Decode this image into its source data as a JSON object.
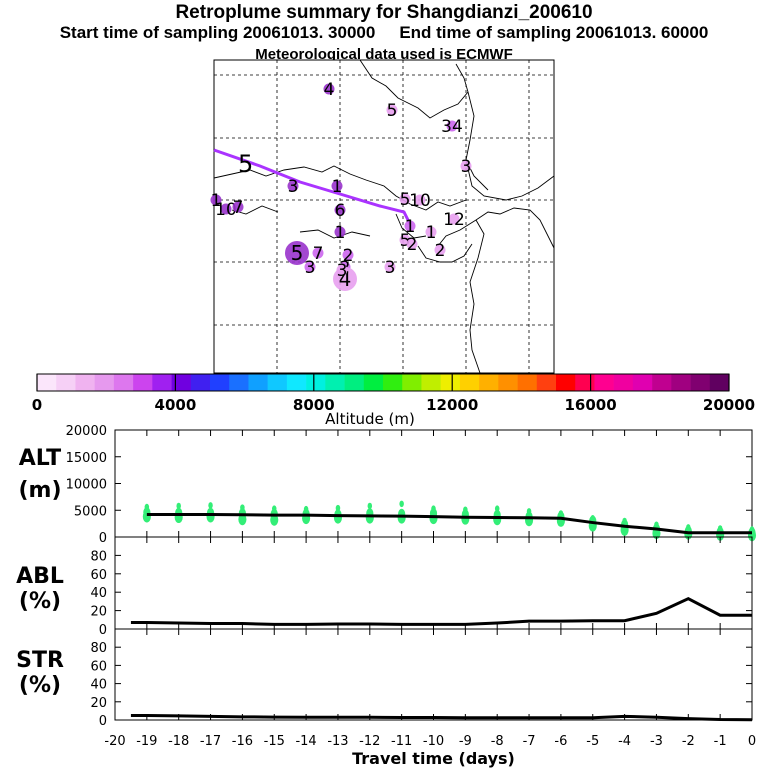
{
  "header": {
    "title": "Retroplume summary for Shangdianzi_200610",
    "start": "Start time of sampling 20061013. 30000",
    "end": "End time of sampling 20061013. 60000",
    "met": "Meteorological data used is ECMWF"
  },
  "colors": {
    "trajectory": "#aa33ff",
    "cluster_light": "#e8a0f0",
    "cluster_mid": "#cc66ee",
    "cluster_dark": "#9933cc",
    "alt_points": "#33ee77",
    "line": "#000000"
  },
  "chart_data": [
    {
      "type": "map",
      "title": "Retroplume summary for Shangdianzi_200610",
      "trajectory_label": "5",
      "cluster_labels": [
        {
          "label": "4",
          "size": "small",
          "shade": "dark"
        },
        {
          "label": "5",
          "size": "small",
          "shade": "light"
        },
        {
          "label": "34",
          "size": "small",
          "shade": "mid"
        },
        {
          "label": "3",
          "size": "small",
          "shade": "light"
        },
        {
          "label": "1",
          "size": "small",
          "shade": "dark"
        },
        {
          "label": "3",
          "size": "small",
          "shade": "dark"
        },
        {
          "label": "1",
          "size": "small",
          "shade": "dark"
        },
        {
          "label": "6",
          "size": "small",
          "shade": "dark"
        },
        {
          "label": "1",
          "size": "small",
          "shade": "dark"
        },
        {
          "label": "10",
          "size": "small",
          "shade": "dark"
        },
        {
          "label": "7",
          "size": "small",
          "shade": "dark"
        },
        {
          "label": "5",
          "size": "small",
          "shade": "light"
        },
        {
          "label": "10",
          "size": "small",
          "shade": "light"
        },
        {
          "label": "12",
          "size": "small",
          "shade": "light"
        },
        {
          "label": "1",
          "size": "small",
          "shade": "light"
        },
        {
          "label": "1",
          "size": "small",
          "shade": "mid"
        },
        {
          "label": "5",
          "size": "small",
          "shade": "light"
        },
        {
          "label": "2",
          "size": "small",
          "shade": "light"
        },
        {
          "label": "2",
          "size": "small",
          "shade": "light"
        },
        {
          "label": "5",
          "size": "large",
          "shade": "dark"
        },
        {
          "label": "7",
          "size": "small",
          "shade": "mid"
        },
        {
          "label": "3",
          "size": "small",
          "shade": "mid"
        },
        {
          "label": "2",
          "size": "small",
          "shade": "mid"
        },
        {
          "label": "2",
          "size": "small",
          "shade": "mid"
        },
        {
          "label": "3",
          "size": "small",
          "shade": "light"
        },
        {
          "label": "4",
          "size": "large",
          "shade": "light"
        },
        {
          "label": "3",
          "size": "small",
          "shade": "light"
        }
      ]
    },
    {
      "type": "colorbar",
      "xlabel": "Altitude (m)",
      "range": [
        0,
        20000
      ],
      "ticks": [
        0,
        4000,
        8000,
        12000,
        16000,
        20000
      ],
      "colors": [
        "#fbe6fb",
        "#f6d0f6",
        "#f0b3f0",
        "#e699ee",
        "#dd77ee",
        "#cc44ee",
        "#a020f0",
        "#7000e0",
        "#4020f0",
        "#2040ff",
        "#1a70ff",
        "#10a0ff",
        "#10c8ff",
        "#10e8ff",
        "#00f0e0",
        "#00f0b0",
        "#00ee80",
        "#00ee40",
        "#30ee10",
        "#80ee00",
        "#c0ee00",
        "#eeee00",
        "#ffd000",
        "#ffb000",
        "#ff9000",
        "#ff7000",
        "#ff4010",
        "#ff0000",
        "#ff0050",
        "#ff0090",
        "#f000a0",
        "#e000b0",
        "#c00090",
        "#a00080",
        "#800070",
        "#600060"
      ]
    },
    {
      "type": "line",
      "ylabel": "ALT\n(m)",
      "ylim": [
        0,
        20000
      ],
      "yticks": [
        0,
        5000,
        10000,
        15000,
        20000
      ],
      "x": [
        -19,
        -18,
        -17,
        -16,
        -15,
        -14,
        -13,
        -12,
        -11,
        -10,
        -9,
        -8,
        -7,
        -6,
        -5,
        -4,
        -3,
        -2,
        -1,
        0
      ],
      "values": [
        4200,
        4200,
        4200,
        4150,
        4100,
        4100,
        4000,
        3950,
        3900,
        3800,
        3700,
        3650,
        3600,
        3500,
        2700,
        2000,
        1500,
        800,
        800,
        800
      ],
      "scatter": [
        {
          "x": -19,
          "y": [
            3800,
            4600,
            5600
          ]
        },
        {
          "x": -18,
          "y": [
            3700,
            4500,
            5800
          ]
        },
        {
          "x": -17,
          "y": [
            3800,
            4500,
            5900
          ]
        },
        {
          "x": -16,
          "y": [
            3300,
            4400,
            5500
          ]
        },
        {
          "x": -15,
          "y": [
            3200,
            4300,
            5300
          ]
        },
        {
          "x": -14,
          "y": [
            3500,
            4300,
            5200
          ]
        },
        {
          "x": -13,
          "y": [
            3600,
            4200,
            5400
          ]
        },
        {
          "x": -12,
          "y": [
            3600,
            4400,
            5800
          ]
        },
        {
          "x": -11,
          "y": [
            3600,
            4300,
            6200
          ]
        },
        {
          "x": -10,
          "y": [
            3500,
            4400,
            5300
          ]
        },
        {
          "x": -9,
          "y": [
            3400,
            4200,
            5100
          ]
        },
        {
          "x": -8,
          "y": [
            3300,
            4100,
            5300
          ]
        },
        {
          "x": -7,
          "y": [
            3100,
            3800,
            4800
          ]
        },
        {
          "x": -6,
          "y": [
            3000,
            3800,
            4400
          ]
        },
        {
          "x": -5,
          "y": [
            2100,
            3000,
            3500
          ]
        },
        {
          "x": -4,
          "y": [
            1300,
            2300,
            3000
          ]
        },
        {
          "x": -3,
          "y": [
            700,
            1500,
            2300
          ]
        },
        {
          "x": -2,
          "y": [
            600,
            1100,
            1800
          ]
        },
        {
          "x": -1,
          "y": [
            400,
            900,
            1600
          ]
        },
        {
          "x": 0,
          "y": [
            300,
            800,
            1400
          ]
        }
      ]
    },
    {
      "type": "line",
      "ylabel": "ABL\n(%)",
      "ylim": [
        0,
        100
      ],
      "yticks": [
        0,
        20,
        40,
        60,
        80
      ],
      "x": [
        -19.5,
        -19,
        -18,
        -17,
        -16,
        -15,
        -14,
        -13,
        -12,
        -11,
        -10,
        -9,
        -8,
        -7,
        -6,
        -5,
        -4,
        -3,
        -2,
        -1,
        0
      ],
      "values": [
        7,
        7,
        6.5,
        6,
        6,
        5,
        5,
        5.5,
        5.5,
        5,
        5,
        5,
        6.5,
        8.5,
        8.5,
        9,
        9,
        17,
        33,
        15,
        15
      ]
    },
    {
      "type": "line",
      "ylabel": "STR\n(%)",
      "ylim": [
        0,
        100
      ],
      "yticks": [
        0,
        20,
        40,
        60,
        80
      ],
      "xlabel": "Travel time (days)",
      "xlim": [
        -20,
        0
      ],
      "xticks": [
        -20,
        -19,
        -18,
        -17,
        -16,
        -15,
        -14,
        -13,
        -12,
        -11,
        -10,
        -9,
        -8,
        -7,
        -6,
        -5,
        -4,
        -3,
        -2,
        -1,
        0
      ],
      "x": [
        -19.5,
        -19,
        -18,
        -17,
        -16,
        -15,
        -14,
        -13,
        -12,
        -11,
        -10,
        -9,
        -8,
        -7,
        -6,
        -5,
        -4,
        -3,
        -2,
        -1,
        0
      ],
      "values": [
        5,
        5,
        4.5,
        4,
        3.5,
        3.2,
        3,
        3,
        3,
        2.8,
        2.8,
        2.5,
        2.5,
        2.5,
        2.5,
        2.5,
        4,
        3,
        1.5,
        0.5,
        0.3
      ]
    }
  ]
}
